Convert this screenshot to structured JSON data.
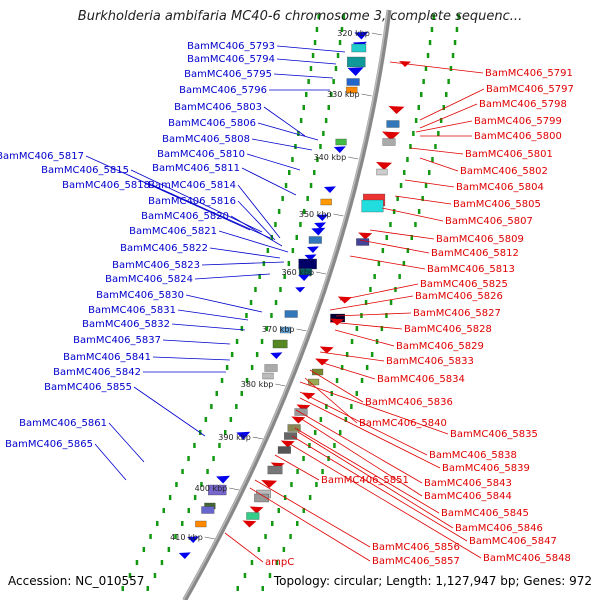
{
  "title": "Burkholderia ambifaria MC40-6 chromosome 3, complete sequenc...",
  "footer": {
    "accession": "Accession: NC_010557",
    "topology": "Topology: circular; Length: 1,127,947 bp; Genes: 972"
  },
  "colors": {
    "forward": "#0000cc",
    "reverse": "#e00000",
    "backbone": "#888888",
    "dots": "#119911"
  },
  "tick_labels": [
    "320 kbp",
    "330 kbp",
    "340 kbp",
    "350 kbp",
    "360 kbp",
    "370 kbp",
    "380 kbp",
    "390 kbp",
    "400 kbp",
    "410 kbp"
  ],
  "left_labels": [
    "BamMC406_5793",
    "BamMC406_5794",
    "BamMC406_5795",
    "BamMC406_5796",
    "BamMC406_5803",
    "BamMC406_5806",
    "BamMC406_5808",
    "BamMC406_5810",
    "BamMC406_5811",
    "BamMC406_5817",
    "BamMC406_5815",
    "BamMC406_5818",
    "BamMC406_5814",
    "BamMC406_5816",
    "BamMC406_5820",
    "BamMC406_5821",
    "BamMC406_5822",
    "BamMC406_5823",
    "BamMC406_5824",
    "BamMC406_5830",
    "BamMC406_5831",
    "BamMC406_5832",
    "BamMC406_5837",
    "BamMC406_5841",
    "BamMC406_5842",
    "BamMC406_5855",
    "BamMC406_5861",
    "BamMC406_5865"
  ],
  "right_labels": [
    "BamMC406_5791",
    "BamMC406_5797",
    "BamMC406_5798",
    "BamMC406_5799",
    "BamMC406_5800",
    "BamMC406_5801",
    "BamMC406_5802",
    "BamMC406_5804",
    "BamMC406_5805",
    "BamMC406_5807",
    "BamMC406_5809",
    "BamMC406_5812",
    "BamMC406_5813",
    "BamMC406_5825",
    "BamMC406_5826",
    "BamMC406_5827",
    "BamMC406_5828",
    "BamMC406_5829",
    "BamMC406_5833",
    "BamMC406_5834",
    "BamMC406_5836",
    "BamMC406_5840",
    "BamMC406_5835",
    "BamMC406_5838",
    "BamMC406_5839",
    "BamMC406_5843",
    "BamMC406_5844",
    "BamMC406_5845",
    "BamMC406_5846",
    "BamMC406_5847",
    "BamMC406_5848",
    "BamMC406_5851",
    "BamMC406_5856",
    "BamMC406_5857",
    "ampC"
  ]
}
